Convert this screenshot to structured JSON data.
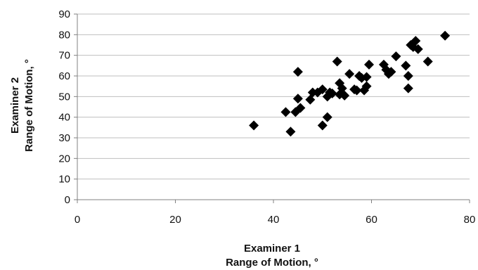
{
  "chart_data": {
    "type": "scatter",
    "title": "",
    "xlabel_lines": [
      "Examiner 1",
      "Range of Motion, °"
    ],
    "ylabel_lines": [
      "Examiner 2",
      "Range of Motion, °"
    ],
    "xlim": [
      0,
      80
    ],
    "ylim": [
      0,
      90
    ],
    "x_ticks": [
      0,
      20,
      40,
      60,
      80
    ],
    "y_ticks": [
      0,
      10,
      20,
      30,
      40,
      50,
      60,
      70,
      80,
      90
    ],
    "grid": "horizontal",
    "legend": "none",
    "marker": "diamond",
    "marker_color": "#000000",
    "grid_color": "#bfbfbf",
    "points": [
      {
        "x": 36,
        "y": 36
      },
      {
        "x": 42.5,
        "y": 42.5
      },
      {
        "x": 43.5,
        "y": 33
      },
      {
        "x": 44.5,
        "y": 42.5
      },
      {
        "x": 45,
        "y": 62
      },
      {
        "x": 45,
        "y": 49
      },
      {
        "x": 45.5,
        "y": 44.5
      },
      {
        "x": 47.5,
        "y": 48.5
      },
      {
        "x": 48,
        "y": 52
      },
      {
        "x": 49,
        "y": 52
      },
      {
        "x": 50,
        "y": 53.5
      },
      {
        "x": 50,
        "y": 36
      },
      {
        "x": 51,
        "y": 50
      },
      {
        "x": 51,
        "y": 40
      },
      {
        "x": 51.5,
        "y": 52
      },
      {
        "x": 52,
        "y": 51.5
      },
      {
        "x": 53,
        "y": 67
      },
      {
        "x": 53.5,
        "y": 51
      },
      {
        "x": 53.5,
        "y": 56.5
      },
      {
        "x": 54,
        "y": 54
      },
      {
        "x": 54.5,
        "y": 50.5
      },
      {
        "x": 55.5,
        "y": 61
      },
      {
        "x": 56.5,
        "y": 53.5
      },
      {
        "x": 57,
        "y": 53
      },
      {
        "x": 57.5,
        "y": 60
      },
      {
        "x": 58,
        "y": 59
      },
      {
        "x": 58.5,
        "y": 53
      },
      {
        "x": 59,
        "y": 55
      },
      {
        "x": 59,
        "y": 59.5
      },
      {
        "x": 59.5,
        "y": 65.5
      },
      {
        "x": 62.5,
        "y": 65.5
      },
      {
        "x": 63,
        "y": 63
      },
      {
        "x": 63.5,
        "y": 61
      },
      {
        "x": 64,
        "y": 62
      },
      {
        "x": 65,
        "y": 69.5
      },
      {
        "x": 67,
        "y": 65
      },
      {
        "x": 67.5,
        "y": 60
      },
      {
        "x": 67.5,
        "y": 54
      },
      {
        "x": 68,
        "y": 75
      },
      {
        "x": 68.5,
        "y": 74
      },
      {
        "x": 69,
        "y": 77
      },
      {
        "x": 69.5,
        "y": 73
      },
      {
        "x": 71.5,
        "y": 67
      },
      {
        "x": 75,
        "y": 79.5
      }
    ]
  }
}
